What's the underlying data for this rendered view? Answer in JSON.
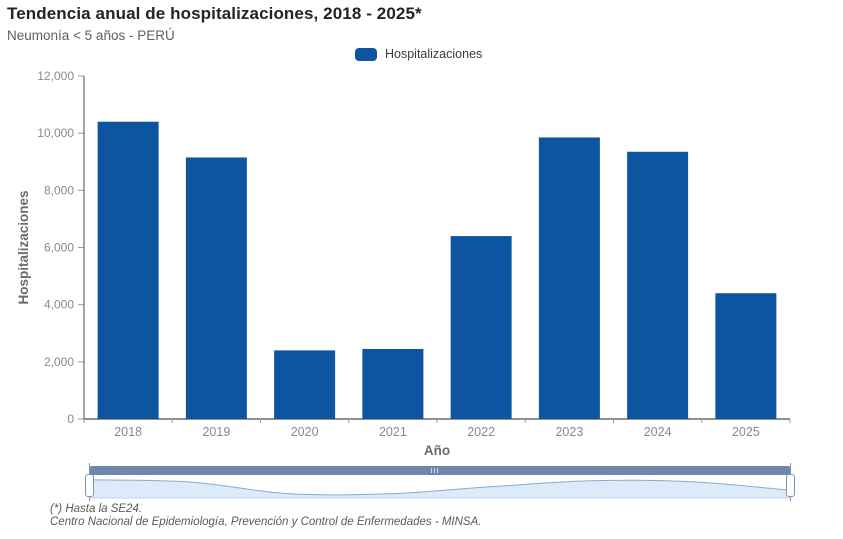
{
  "header": {
    "title": "Tendencia anual de hospitalizaciones, 2018 - 2025*",
    "subtitle": "Neumonía < 5 años - PERÚ"
  },
  "legend": {
    "label": "Hospitalizaciones"
  },
  "chart_data": {
    "type": "bar",
    "title": "Tendencia anual de hospitalizaciones, 2018 - 2025*",
    "subtitle": "Neumonía < 5 años - PERÚ",
    "categories": [
      "2018",
      "2019",
      "2020",
      "2021",
      "2022",
      "2023",
      "2024",
      "2025"
    ],
    "series": [
      {
        "name": "Hospitalizaciones",
        "values": [
          10400,
          9150,
          2400,
          2450,
          6400,
          9850,
          9350,
          4400
        ]
      }
    ],
    "xlabel": "Año",
    "ylabel": "Hospitalizaciones",
    "ylim": [
      0,
      12000
    ],
    "ytick_step": 2000,
    "ytick_labels": [
      "0",
      "2,000",
      "4,000",
      "6,000",
      "8,000",
      "10,000",
      "12,000"
    ],
    "grid": false,
    "legend_position": "top"
  },
  "colors": {
    "bar": "#0e55a1",
    "title_text": "#252423",
    "subtitle_text": "#605e5c",
    "axis_tick_text": "#8a8a8a",
    "axis_title_text": "#6b6b6b",
    "axis_line": "#4a4a4a",
    "tick_mark": "#999999",
    "slider_track": "#6e87ab",
    "slider_area_fill": "#ddeaf7",
    "slider_area_stroke": "#86abd3",
    "slider_handle_border": "#7d95b5"
  },
  "footnotes": [
    "(*) Hasta la SE24.",
    "Centro Nacional de Epidemiología, Prevención y Control de Enfermedades - MINSA."
  ]
}
